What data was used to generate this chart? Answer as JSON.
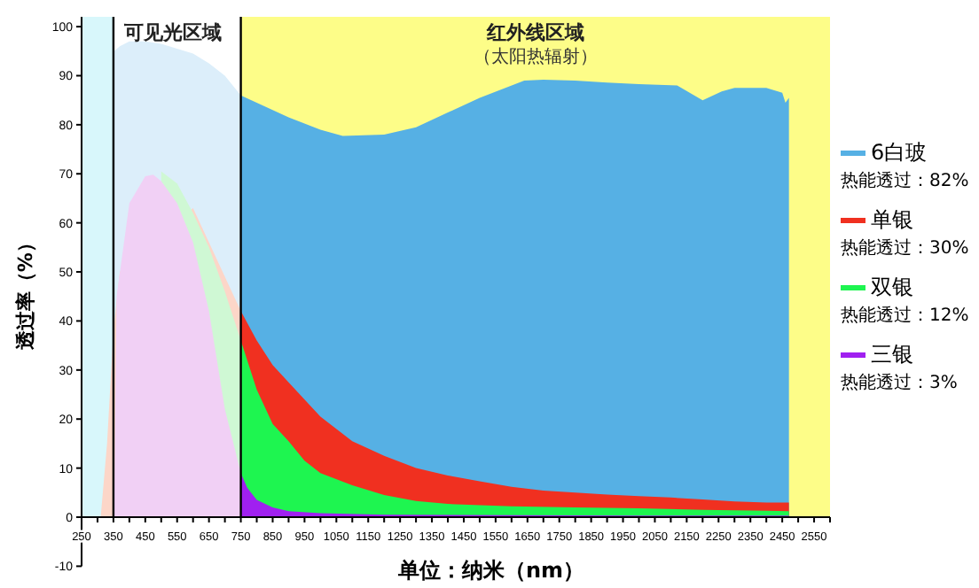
{
  "chart_data": {
    "type": "area",
    "xlabel": "单位：纳米（nm）",
    "ylabel": "透过率（%）",
    "xlim": [
      250,
      2600
    ],
    "ylim": [
      -10,
      102
    ],
    "xticks": [
      250,
      {
        "value": 300,
        "label": null
      },
      350,
      {
        "value": 400,
        "label": null
      },
      450,
      {
        "value": 500,
        "label": null
      },
      550,
      {
        "value": 600,
        "label": null
      },
      650,
      {
        "value": 700,
        "label": null
      },
      750,
      {
        "value": 800,
        "label": null
      },
      850,
      {
        "value": 900,
        "label": null
      },
      950,
      {
        "value": 1000,
        "label": null
      },
      1050,
      {
        "value": 1100,
        "label": null
      },
      1150,
      {
        "value": 1200,
        "label": null
      },
      1250,
      {
        "value": 1300,
        "label": null
      },
      1350,
      {
        "value": 1400,
        "label": null
      },
      1450,
      {
        "value": 1500,
        "label": null
      },
      1550,
      {
        "value": 1600,
        "label": null
      },
      1650,
      {
        "value": 1700,
        "label": null
      },
      1750,
      {
        "value": 1800,
        "label": null
      },
      1850,
      {
        "value": 1900,
        "label": null
      },
      1950,
      {
        "value": 2000,
        "label": null
      },
      2050,
      {
        "value": 2100,
        "label": null
      },
      2150,
      {
        "value": 2200,
        "label": null
      },
      2250,
      {
        "value": 2300,
        "label": null
      },
      2350,
      {
        "value": 2400,
        "label": null
      },
      2450,
      {
        "value": 2500,
        "label": null
      },
      2550,
      {
        "value": 2600,
        "label": null
      }
    ],
    "yticks": [
      -10,
      0,
      10,
      20,
      30,
      40,
      50,
      60,
      70,
      80,
      90,
      100
    ],
    "legend": "right",
    "bands": [
      {
        "axis": "x",
        "from": 250,
        "to": 350,
        "color": "#d8f7fb"
      },
      {
        "axis": "x",
        "from": 750,
        "to": 2600,
        "label": "红外线区域",
        "color": "#fdfd88"
      }
    ],
    "ref_lines": [
      {
        "axis": "x",
        "value": 350,
        "label": "可见光区域",
        "color": "#000000"
      },
      {
        "axis": "x",
        "value": 750,
        "color": "#000000"
      }
    ],
    "annotations": [
      "热能透过：82%",
      "热能透过：30%",
      "热能透过：12%",
      "热能透过：3%",
      "（太阳热辐射）"
    ],
    "series": [
      {
        "color": "#dceefa",
        "x": [
          352,
          370,
          400,
          450,
          500,
          550,
          600,
          650,
          700,
          750
        ],
        "values": [
          95,
          96,
          97,
          97,
          96.5,
          95.5,
          94.5,
          92.5,
          90,
          86
        ]
      },
      {
        "color": "#fcd6c8",
        "x": [
          310,
          330,
          350,
          370,
          600,
          650,
          700,
          750
        ],
        "values": [
          0,
          15,
          38,
          50,
          63,
          56,
          49,
          42
        ]
      },
      {
        "color": "#cff8d4",
        "x": [
          500,
          550,
          600,
          650,
          700,
          750
        ],
        "values": [
          70.5,
          68,
          62,
          55,
          46,
          36
        ]
      },
      {
        "color": "#f1d0f5",
        "x": [
          352,
          360,
          400,
          450,
          475,
          500,
          550,
          600,
          650,
          700,
          750
        ],
        "values": [
          0,
          45,
          64,
          69.5,
          69.8,
          68.5,
          64,
          56,
          42,
          22,
          9
        ]
      },
      {
        "name": "6白玻",
        "color": "#56b0e4",
        "x": [
          750,
          800,
          900,
          1000,
          1070,
          1200,
          1300,
          1400,
          1500,
          1640,
          1700,
          1800,
          1900,
          2000,
          2120,
          2200,
          2260,
          2300,
          2400,
          2450,
          2460,
          2471
        ],
        "values": [
          86,
          84.5,
          81.5,
          79,
          77.7,
          78,
          79.5,
          82.5,
          85.5,
          89,
          89.2,
          89,
          88.6,
          88.3,
          88,
          85,
          86.8,
          87.5,
          87.5,
          86.5,
          84.5,
          85.5
        ]
      },
      {
        "name": "单银",
        "color": "#f03020",
        "x": [
          750,
          800,
          850,
          900,
          1000,
          1100,
          1200,
          1300,
          1400,
          1500,
          1600,
          1700,
          1800,
          1900,
          2000,
          2100,
          2200,
          2300,
          2400,
          2471
        ],
        "values": [
          42,
          36,
          31,
          27.5,
          20.5,
          15.5,
          12.5,
          10,
          8.5,
          7.3,
          6.2,
          5.4,
          5,
          4.6,
          4.3,
          4,
          3.6,
          3.2,
          3,
          3
        ]
      },
      {
        "name": "双银",
        "color": "#1ef550",
        "x": [
          750,
          800,
          850,
          900,
          950,
          1000,
          1100,
          1200,
          1300,
          1400,
          1600,
          1800,
          2000,
          2200,
          2400,
          2471
        ],
        "values": [
          36,
          26,
          19,
          15.5,
          11.5,
          9,
          6.5,
          4.5,
          3.3,
          2.7,
          2.2,
          2,
          1.8,
          1.5,
          1.3,
          1.2
        ]
      },
      {
        "name": "三银",
        "color": "#a020f0",
        "x": [
          750,
          770,
          800,
          850,
          900,
          1000,
          1200,
          1600,
          2000,
          2471
        ],
        "values": [
          9,
          6,
          3.5,
          2,
          1.2,
          0.8,
          0.5,
          0.4,
          0.3,
          0.3
        ]
      }
    ]
  }
}
